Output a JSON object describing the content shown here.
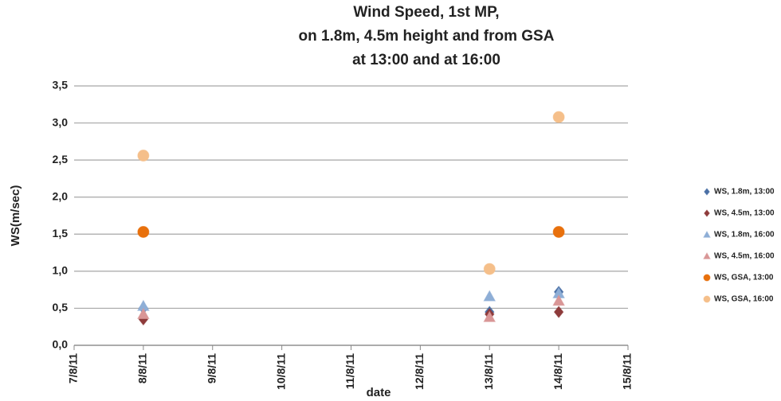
{
  "chart_data": {
    "type": "scatter",
    "title": [
      "Wind Speed, 1st MP,",
      "on 1.8m, 4.5m height and from GSA",
      "at 13:00 and at 16:00"
    ],
    "x_label": "date",
    "y_label": "WS(m/sec)",
    "categories": [
      "7/8/11",
      "8/8/11",
      "9/8/11",
      "10/8/11",
      "11/8/11",
      "12/8/11",
      "13/8/11",
      "14/8/11",
      "15/8/11"
    ],
    "series": [
      {
        "name": "WS, 1.8m, 13:00",
        "color": "#4a6fa5",
        "marker": "diamond",
        "values": [
          null,
          0.5,
          null,
          null,
          null,
          null,
          0.45,
          0.72,
          null
        ]
      },
      {
        "name": "WS, 4.5m, 13:00",
        "color": "#8e3b3b",
        "marker": "diamond",
        "values": [
          null,
          0.35,
          null,
          null,
          null,
          null,
          0.42,
          0.45,
          null
        ]
      },
      {
        "name": "WS, 1.8m, 16:00",
        "color": "#8eaed6",
        "marker": "triangle",
        "values": [
          null,
          0.53,
          null,
          null,
          null,
          null,
          0.66,
          0.7,
          null
        ]
      },
      {
        "name": "WS, 4.5m, 16:00",
        "color": "#d99696",
        "marker": "triangle",
        "values": [
          null,
          0.42,
          null,
          null,
          null,
          null,
          0.38,
          0.6,
          null
        ]
      },
      {
        "name": "WS, GSA, 13:00",
        "color": "#e8700c",
        "marker": "circle",
        "values": [
          null,
          1.53,
          null,
          null,
          null,
          null,
          null,
          1.53,
          null
        ]
      },
      {
        "name": "WS, GSA, 16:00",
        "color": "#f5bf8a",
        "marker": "circle",
        "values": [
          null,
          2.56,
          null,
          null,
          null,
          null,
          1.03,
          3.08,
          null
        ]
      }
    ],
    "ylim": [
      0,
      3.5
    ],
    "yticks": [
      {
        "value": 0,
        "label": "0,0"
      },
      {
        "value": 0.5,
        "label": "0,5"
      },
      {
        "value": 1,
        "label": "1,0"
      },
      {
        "value": 1.5,
        "label": "1,5"
      },
      {
        "value": 2,
        "label": "2,0"
      },
      {
        "value": 2.5,
        "label": "2,5"
      },
      {
        "value": 3,
        "label": "3,0"
      },
      {
        "value": 3.5,
        "label": "3,5"
      }
    ],
    "grid": true,
    "legend": "right"
  }
}
